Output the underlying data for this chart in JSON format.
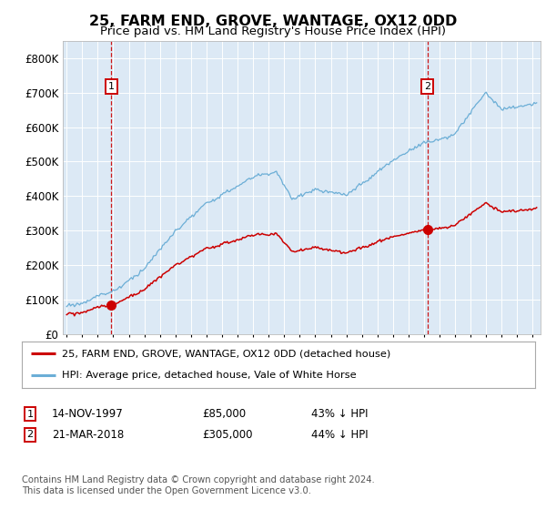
{
  "title": "25, FARM END, GROVE, WANTAGE, OX12 0DD",
  "subtitle": "Price paid vs. HM Land Registry's House Price Index (HPI)",
  "bg_color": "#dce9f5",
  "legend_line1": "25, FARM END, GROVE, WANTAGE, OX12 0DD (detached house)",
  "legend_line2": "HPI: Average price, detached house, Vale of White Horse",
  "footnote": "Contains HM Land Registry data © Crown copyright and database right 2024.\nThis data is licensed under the Open Government Licence v3.0.",
  "transaction1_date": "14-NOV-1997",
  "transaction1_price": "£85,000",
  "transaction1_hpi": "43% ↓ HPI",
  "transaction1_year": 1997.87,
  "transaction1_value": 85000,
  "transaction2_date": "21-MAR-2018",
  "transaction2_price": "£305,000",
  "transaction2_hpi": "44% ↓ HPI",
  "transaction2_year": 2018.22,
  "transaction2_value": 305000,
  "hpi_color": "#6baed6",
  "price_color": "#cc0000",
  "vline_color": "#cc0000",
  "marker_color": "#cc0000",
  "ylim_max": 850000,
  "yticks": [
    0,
    100000,
    200000,
    300000,
    400000,
    500000,
    600000,
    700000,
    800000
  ],
  "ytick_labels": [
    "£0",
    "£100K",
    "£200K",
    "£300K",
    "£400K",
    "£500K",
    "£600K",
    "£700K",
    "£800K"
  ],
  "xlim_min": 1994.75,
  "xlim_max": 2025.5
}
